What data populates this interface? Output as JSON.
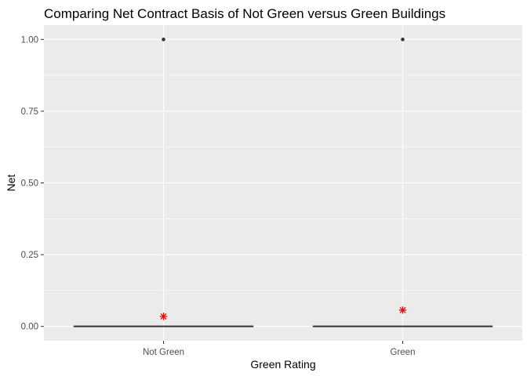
{
  "chart_data": {
    "type": "boxplot",
    "title": "Comparing Net Contract Basis of Not Green versus Green Buildings",
    "xlabel": "Green Rating",
    "ylabel": "Net",
    "categories": [
      "Not Green",
      "Green"
    ],
    "ylim": [
      -0.05,
      1.05
    ],
    "yticks": [
      0.0,
      0.25,
      0.5,
      0.75,
      1.0
    ],
    "ytick_labels": [
      "0.00",
      "0.25",
      "0.50",
      "0.75",
      "1.00"
    ],
    "boxes": [
      {
        "category": "Not Green",
        "min": 0,
        "q1": 0,
        "median": 0,
        "q3": 0,
        "max": 0,
        "outliers": [
          1.0
        ],
        "mean": 0.035
      },
      {
        "category": "Green",
        "min": 0,
        "q1": 0,
        "median": 0,
        "q3": 0,
        "max": 0,
        "outliers": [
          1.0
        ],
        "mean": 0.057
      }
    ],
    "grid": true,
    "legend": "none",
    "colors": {
      "panel_background": "#ebebeb",
      "grid": "#ffffff",
      "box_line": "#333333",
      "outlier": "#333333",
      "mean_marker": "#ff0000"
    }
  }
}
